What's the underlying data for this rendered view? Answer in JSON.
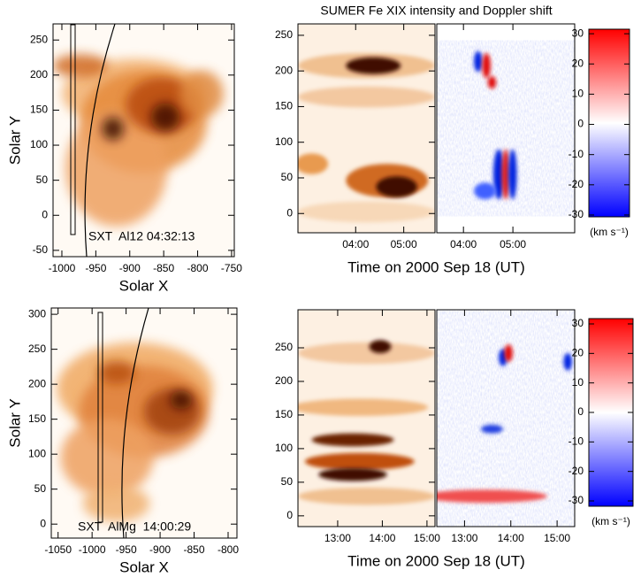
{
  "chart_data": [
    {
      "type": "image",
      "colormap": "sxt",
      "xlabel": "Solar X",
      "ylabel": "Solar Y",
      "annotation": "SXT  Al12 04:32:13",
      "xlim": [
        -1013,
        -746
      ],
      "xticks": [
        -1000,
        -950,
        -900,
        -850,
        -800,
        -750
      ],
      "ylim": [
        -59,
        273
      ],
      "yticks": [
        -50,
        0,
        50,
        100,
        150,
        200,
        250
      ]
    },
    {
      "type": "image",
      "colormap": "intensity",
      "title": "SUMER Fe XIX intensity and Doppler shift",
      "xlabel": "Time on 2000 Sep 18 (UT)",
      "xlim": [
        2.8,
        5.65
      ],
      "xticks": [
        {
          "value": 4,
          "label": "04:00"
        },
        {
          "value": 5,
          "label": "05:00"
        }
      ],
      "ylim": [
        -27,
        266
      ],
      "yticks": [
        0,
        50,
        100,
        150,
        200,
        250
      ]
    },
    {
      "type": "image",
      "colormap": "doppler",
      "xlim": [
        3.46,
        6.25
      ],
      "xticks": [
        {
          "value": 4,
          "label": "04:00"
        },
        {
          "value": 5,
          "label": "05:00"
        }
      ],
      "ylim": [
        -27,
        266
      ]
    },
    {
      "type": "colorbar",
      "label": "(km s⁻¹)",
      "colors": [
        "#0000ff",
        "#ffffff",
        "#ff0000"
      ],
      "ylim": [
        -30.6,
        31.5
      ],
      "yticks": [
        -30,
        -20,
        -10,
        0,
        10,
        20,
        30
      ]
    },
    {
      "type": "image",
      "colormap": "sxt",
      "xlabel": "Solar X",
      "ylabel": "Solar Y",
      "annotation": "SXT  AlMg  14:00:29",
      "xlim": [
        -1060,
        -787
      ],
      "xticks": [
        -1050,
        -1000,
        -950,
        -900,
        -850,
        -800
      ],
      "ylim": [
        -20,
        309
      ],
      "yticks": [
        0,
        50,
        100,
        150,
        200,
        250,
        300
      ]
    },
    {
      "type": "image",
      "colormap": "intensity",
      "xlabel": "Time on 2000 Sep 18 (UT)",
      "xlim": [
        12.11,
        15.18
      ],
      "xticks": [
        {
          "value": 13,
          "label": "13:00"
        },
        {
          "value": 14,
          "label": "14:00"
        },
        {
          "value": 15,
          "label": "15:00"
        }
      ],
      "ylim": [
        -16,
        306.6
      ],
      "yticks": [
        0,
        50,
        100,
        150,
        200,
        250
      ]
    },
    {
      "type": "image",
      "colormap": "doppler",
      "xlim": [
        12.4,
        15.38
      ],
      "xticks": [
        {
          "value": 13,
          "label": "13:00"
        },
        {
          "value": 14,
          "label": "14:00"
        },
        {
          "value": 15,
          "label": "15:00"
        }
      ],
      "ylim": [
        -16,
        306.6
      ]
    },
    {
      "type": "colorbar",
      "label": "(km s⁻¹)",
      "colors": [
        "#0000ff",
        "#ffffff",
        "#ff0000"
      ],
      "ylim": [
        -31.8,
        31.8
      ],
      "yticks": [
        -30,
        -20,
        -10,
        0,
        10,
        20,
        30
      ]
    }
  ]
}
